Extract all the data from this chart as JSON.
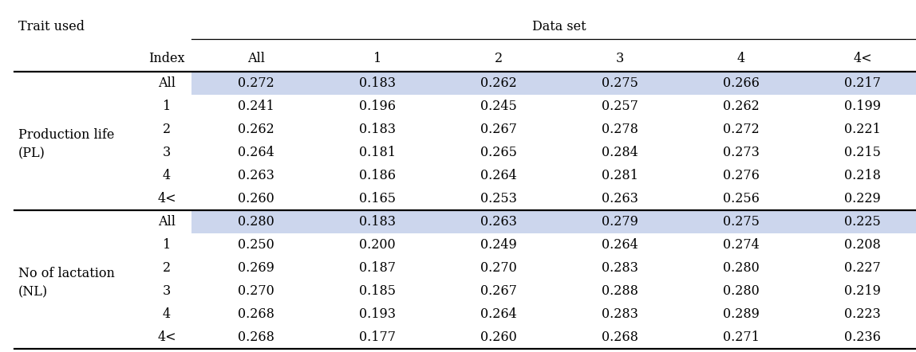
{
  "col_headers": [
    "Index",
    "All",
    "1",
    "2",
    "3",
    "4",
    "4<"
  ],
  "sections": [
    {
      "label_line1": "Production life",
      "label_line2": "(PL)",
      "rows": [
        {
          "index": "All",
          "values": [
            "0.272",
            "0.183",
            "0.262",
            "0.275",
            "0.266",
            "0.217"
          ],
          "highlight": true
        },
        {
          "index": "1",
          "values": [
            "0.241",
            "0.196",
            "0.245",
            "0.257",
            "0.262",
            "0.199"
          ],
          "highlight": false
        },
        {
          "index": "2",
          "values": [
            "0.262",
            "0.183",
            "0.267",
            "0.278",
            "0.272",
            "0.221"
          ],
          "highlight": false
        },
        {
          "index": "3",
          "values": [
            "0.264",
            "0.181",
            "0.265",
            "0.284",
            "0.273",
            "0.215"
          ],
          "highlight": false
        },
        {
          "index": "4",
          "values": [
            "0.263",
            "0.186",
            "0.264",
            "0.281",
            "0.276",
            "0.218"
          ],
          "highlight": false
        },
        {
          "index": "4<",
          "values": [
            "0.260",
            "0.165",
            "0.253",
            "0.263",
            "0.256",
            "0.229"
          ],
          "highlight": false
        }
      ]
    },
    {
      "label_line1": "No of lactation",
      "label_line2": "(NL)",
      "rows": [
        {
          "index": "All",
          "values": [
            "0.280",
            "0.183",
            "0.263",
            "0.279",
            "0.275",
            "0.225"
          ],
          "highlight": true
        },
        {
          "index": "1",
          "values": [
            "0.250",
            "0.200",
            "0.249",
            "0.264",
            "0.274",
            "0.208"
          ],
          "highlight": false
        },
        {
          "index": "2",
          "values": [
            "0.269",
            "0.187",
            "0.270",
            "0.283",
            "0.280",
            "0.227"
          ],
          "highlight": false
        },
        {
          "index": "3",
          "values": [
            "0.270",
            "0.185",
            "0.267",
            "0.288",
            "0.280",
            "0.219"
          ],
          "highlight": false
        },
        {
          "index": "4",
          "values": [
            "0.268",
            "0.193",
            "0.264",
            "0.283",
            "0.289",
            "0.223"
          ],
          "highlight": false
        },
        {
          "index": "4<",
          "values": [
            "0.268",
            "0.177",
            "0.260",
            "0.268",
            "0.271",
            "0.236"
          ],
          "highlight": false
        }
      ]
    }
  ],
  "highlight_color": "#ccd6ed",
  "line_color": "#000000",
  "text_color": "#000000",
  "font_size": 11.5,
  "trait_used_label": "Trait used",
  "dataset_label": "Data set"
}
